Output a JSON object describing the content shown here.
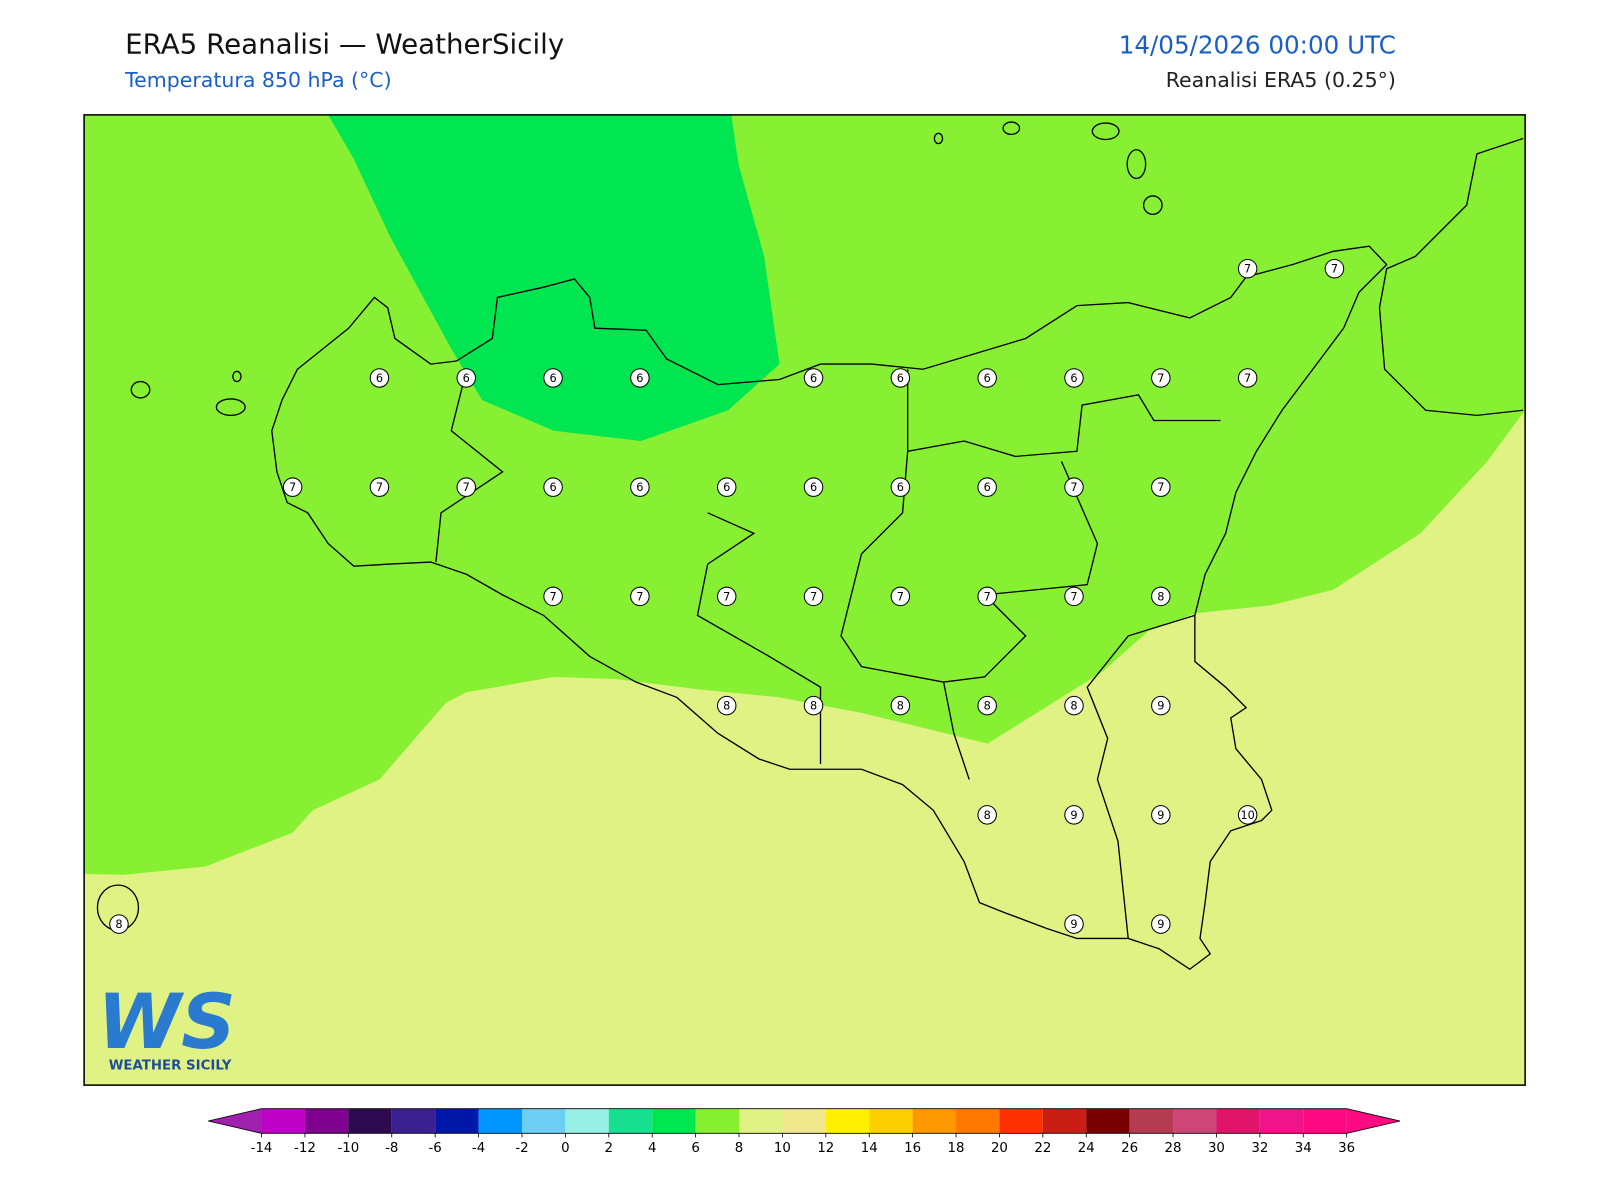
{
  "header": {
    "title": "ERA5 Reanalisi — WeatherSicily",
    "subtitle": "Temperatura 850 hPa (°C)",
    "datetime": "14/05/2026 00:00 UTC",
    "source": "Reanalisi ERA5 (0.25°)"
  },
  "points": [
    [
      null,
      null,
      null,
      null,
      null,
      null,
      null,
      null,
      null,
      null,
      null,
      null,
      null,
      7,
      7
    ],
    [
      null,
      null,
      null,
      6,
      6,
      6,
      6,
      null,
      6,
      6,
      6,
      6,
      7,
      7,
      null
    ],
    [
      null,
      null,
      7,
      7,
      7,
      6,
      6,
      6,
      6,
      6,
      6,
      7,
      7,
      null,
      null
    ],
    [
      null,
      null,
      null,
      null,
      null,
      7,
      7,
      7,
      7,
      7,
      7,
      7,
      8,
      null,
      null
    ],
    [
      null,
      null,
      null,
      null,
      null,
      null,
      null,
      8,
      8,
      8,
      8,
      8,
      9,
      null,
      null
    ],
    [
      null,
      null,
      null,
      null,
      null,
      null,
      null,
      null,
      null,
      null,
      8,
      9,
      9,
      10,
      null
    ],
    [
      8,
      null,
      null,
      null,
      null,
      null,
      null,
      null,
      null,
      null,
      null,
      9,
      9,
      null,
      null
    ]
  ],
  "colorbar": {
    "ticks": [
      -14,
      -12,
      -10,
      -8,
      -6,
      -4,
      -2,
      0,
      2,
      4,
      6,
      8,
      10,
      12,
      14,
      16,
      18,
      20,
      22,
      24,
      26,
      28,
      30,
      32,
      34,
      36
    ],
    "colors": [
      "#c000c8",
      "#800090",
      "#2e0a50",
      "#3a2090",
      "#0018a8",
      "#0096ff",
      "#6ecff6",
      "#96f0e6",
      "#18e090",
      "#00e650",
      "#88f032",
      "#e0f283",
      "#f0e68c",
      "#fff000",
      "#ffd000",
      "#ff9800",
      "#ff7800",
      "#ff3000",
      "#c81e14",
      "#780000",
      "#b43c50",
      "#cd4678",
      "#e01468",
      "#f0148a",
      "#ff0a82"
    ],
    "under": "#a020b0",
    "over": "#ff0a82"
  },
  "logo": {
    "text": "WS",
    "caption": "WEATHER SICILY"
  }
}
